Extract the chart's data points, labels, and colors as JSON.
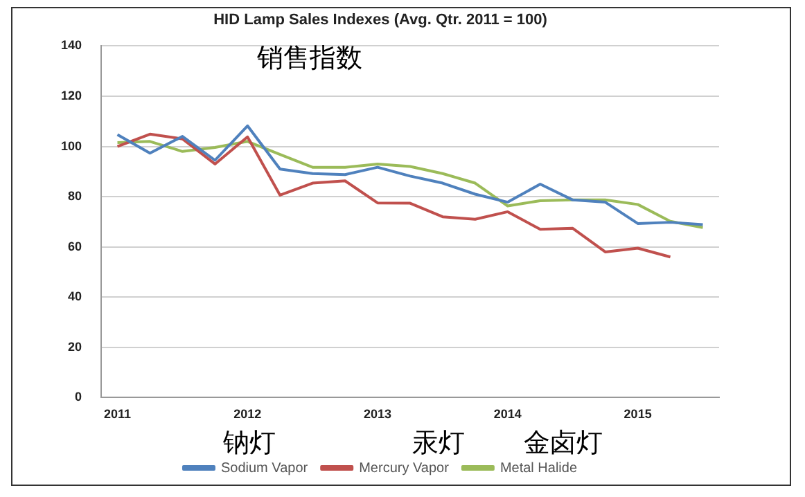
{
  "chart_data": {
    "type": "line",
    "title": "HID Lamp Sales Indexes (Avg. Qtr. 2011 = 100)",
    "categories": [
      "2011",
      null,
      null,
      null,
      "2012",
      null,
      null,
      null,
      "2013",
      null,
      null,
      null,
      "2014",
      null,
      null,
      null,
      "2015",
      null,
      null
    ],
    "series": [
      {
        "name": "Sodium Vapor",
        "color": "#4f81bd",
        "values": [
          104.7,
          97.3,
          104,
          94.5,
          108.2,
          91,
          89.2,
          88.8,
          91.7,
          88.2,
          85.4,
          81,
          77.8,
          85,
          78.7,
          77.8,
          69.3,
          69.8,
          68.9
        ]
      },
      {
        "name": "Mercury Vapor",
        "color": "#c0504d",
        "values": [
          100,
          104.9,
          103,
          93,
          103.8,
          80.6,
          85.4,
          86.3,
          77.5,
          77.4,
          72,
          71,
          74,
          67,
          67.4,
          58,
          59.5,
          56,
          null
        ]
      },
      {
        "name": "Metal Halide",
        "color": "#9bbb59",
        "values": [
          101.5,
          102,
          98,
          99.6,
          102,
          96.8,
          91.7,
          91.7,
          93,
          92,
          89.2,
          85.4,
          76.3,
          78.4,
          78.7,
          78.7,
          76.9,
          70.2,
          67.7
        ]
      }
    ],
    "ylim": [
      0,
      140
    ],
    "yticks": [
      0,
      20,
      40,
      60,
      80,
      100,
      120,
      140
    ],
    "grid": "y",
    "legend": "bottom",
    "marker": "none",
    "line_style": "solid",
    "annotations": [
      "销售指数",
      "钠灯",
      "汞灯",
      "金卤灯"
    ]
  }
}
